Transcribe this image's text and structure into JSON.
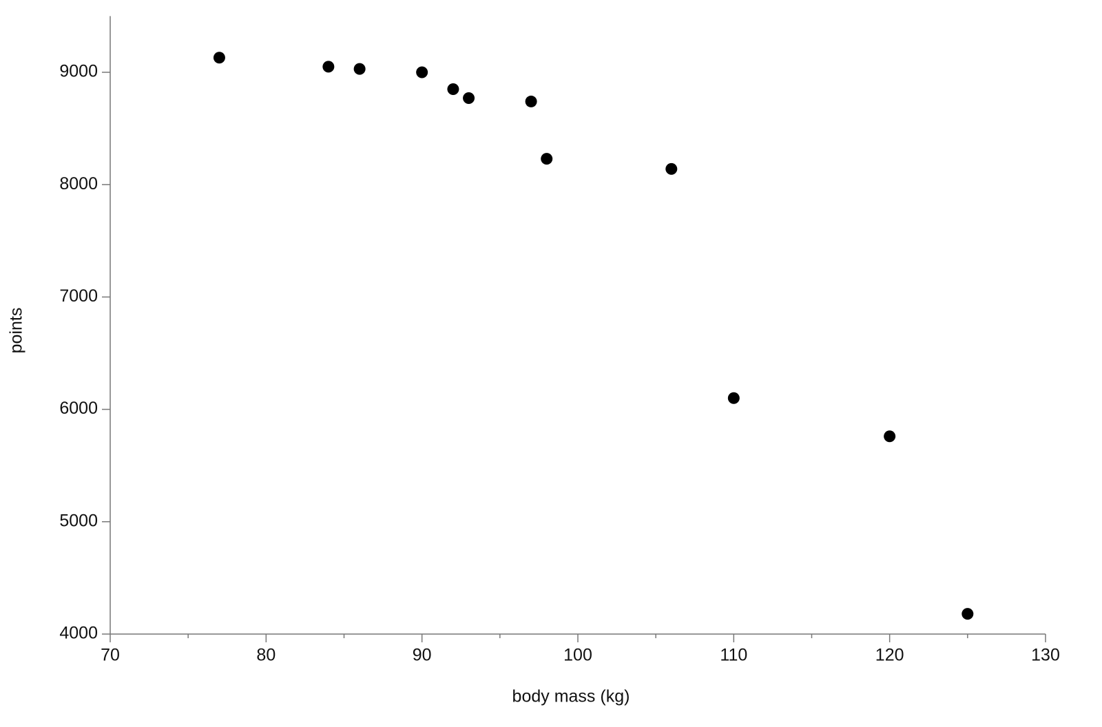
{
  "chart_data": {
    "type": "scatter",
    "x_label": "body mass (kg)",
    "y_label": "points",
    "x": [
      77,
      84,
      86,
      90,
      92,
      93,
      97,
      98,
      106,
      110,
      120,
      125
    ],
    "values": [
      9130,
      9050,
      9030,
      9000,
      8850,
      8770,
      8740,
      8230,
      8140,
      6100,
      5760,
      4180
    ],
    "color": "#000000",
    "xlim": [
      70,
      130
    ],
    "xticks": [
      70,
      80,
      90,
      100,
      110,
      120,
      130
    ],
    "xminorticks": [
      75,
      85,
      95,
      105,
      115,
      125
    ],
    "ylim": [
      4000,
      9500
    ],
    "yticks": [
      4000,
      5000,
      6000,
      7000,
      8000,
      9000
    ],
    "grid": false
  }
}
